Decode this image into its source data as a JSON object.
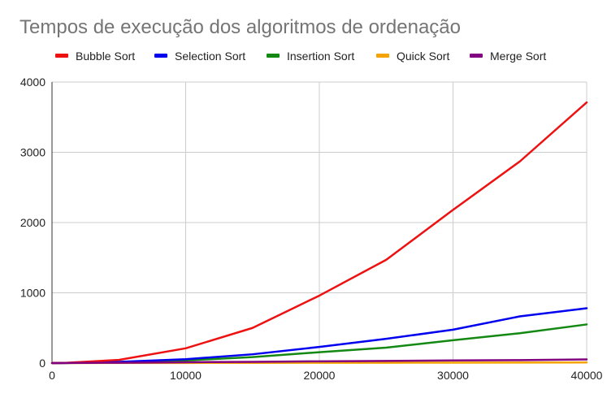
{
  "chart_data": {
    "type": "line",
    "title": "Tempos de execução dos algoritmos de ordenação",
    "xlabel": "",
    "ylabel": "",
    "x": [
      0,
      1000,
      5000,
      10000,
      15000,
      20000,
      25000,
      30000,
      35000,
      40000
    ],
    "xlim": [
      0,
      40000
    ],
    "ylim": [
      0,
      4000
    ],
    "xticks": [
      0,
      10000,
      20000,
      30000,
      40000
    ],
    "yticks": [
      0,
      1000,
      2000,
      3000,
      4000
    ],
    "grid": true,
    "legend_position": "top",
    "series": [
      {
        "name": "Bubble Sort",
        "color": "#ee1111",
        "values": [
          0,
          3,
          45,
          210,
          500,
          960,
          1470,
          2180,
          2870,
          3710
        ]
      },
      {
        "name": "Selection Sort",
        "color": "#0000ee",
        "values": [
          0,
          1,
          18,
          55,
          125,
          230,
          345,
          475,
          665,
          780
        ]
      },
      {
        "name": "Insertion Sort",
        "color": "#138813",
        "values": [
          0,
          1,
          12,
          38,
          85,
          155,
          220,
          325,
          425,
          550
        ]
      },
      {
        "name": "Quick Sort",
        "color": "#f4a300",
        "values": [
          0,
          0,
          1,
          2,
          3,
          4,
          5,
          6,
          7,
          8
        ]
      },
      {
        "name": "Merge Sort",
        "color": "#800080",
        "values": [
          0,
          1,
          5,
          12,
          18,
          25,
          30,
          38,
          42,
          52
        ]
      }
    ]
  }
}
